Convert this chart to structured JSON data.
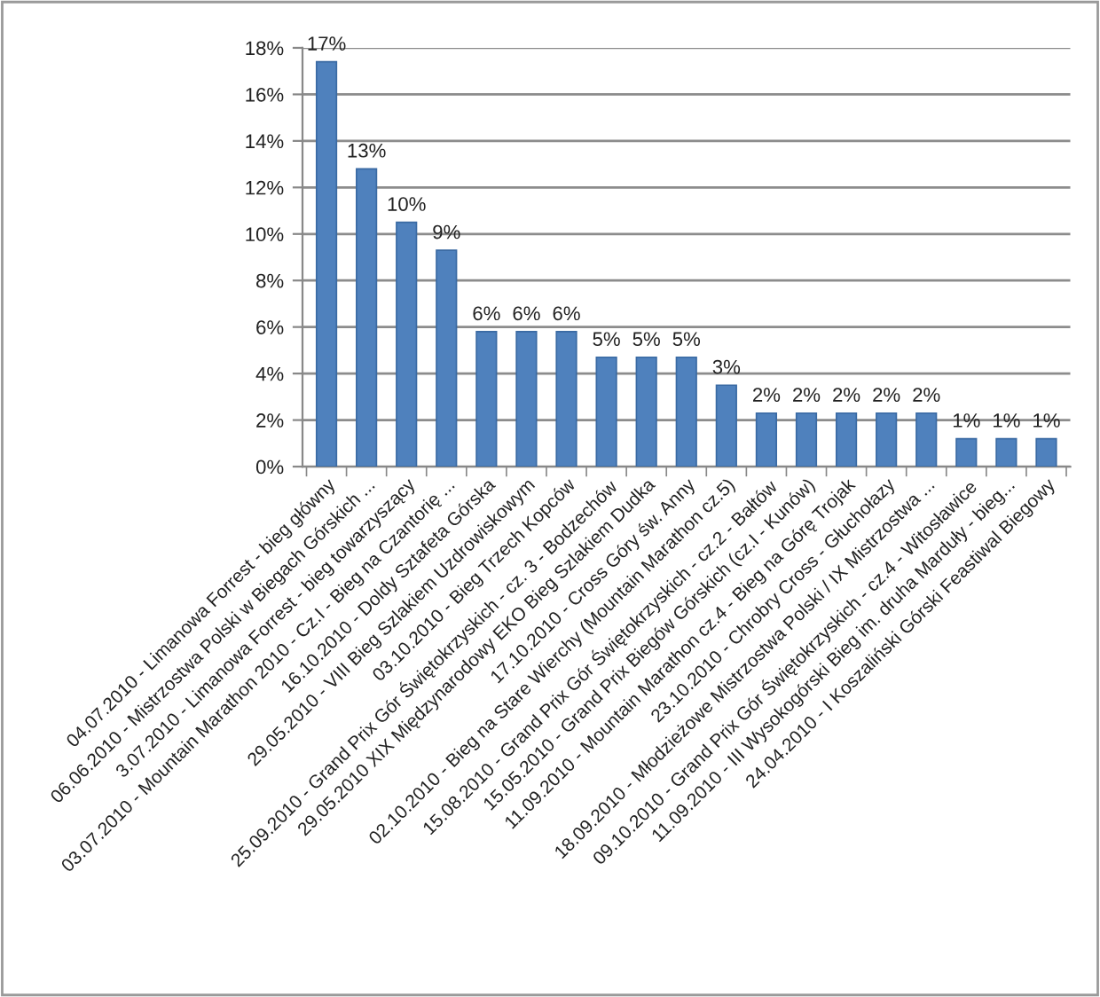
{
  "chart_data": {
    "type": "bar",
    "categories": [
      "04.07.2010 - Limanowa Forrest - bieg główny",
      "06.06.2010 - Mistrzostwa Polski w Biegach Górskich ...",
      "3.07.2010 - Limanowa Forrest - bieg towarzyszący",
      "03.07.2010 - Mountain Marathon 2010 - Cz.I - Bieg na Czantorię ...",
      "16.10.2010 - Doldy Sztafeta Górska",
      "29.05.2010 - VIII Bieg Szlakiem Uzdrowiskowym",
      "03.10.2010 - Bieg Trzech Kopców",
      "25.09.2010 - Grand Prix Gór Świętokrzyskich - cz. 3 - Bodzechów",
      "29.05.2010 XIX Międzynarodowy EKO Bieg Szlakiem Dudka",
      "17.10.2010 - Cross Góry św. Anny",
      "02.10.2010 - Bieg na Stare Wierchy (Mountain Marathon cz.5)",
      "15.08.2010 - Grand Prix Gór Świętokrzyskich - cz.2 - Bałtów",
      "15.05.2010 - Grand Prix Biegów Górskich (cz.I - Kunów)",
      "11.09.2010 - Mountain Marathon cz.4 - Bieg na Górę Trojak",
      "23.10.2010 - Chrobry Cross - Głuchołazy",
      "18.09.2010 - Młodzieżowe Mistrzostwa Polski / IX Mistrzostwa ...",
      "09.10.2010 - Grand Prix Gór Świętokrzyskich - cz.4 - Witosławice",
      "11.09.2010 - III Wysokogórski Bieg im. druha Marduły - bieg...",
      "24.04.2010 - I Koszaliński Górski Feastiwal Biegowy"
    ],
    "values": [
      17.4,
      12.8,
      10.5,
      9.3,
      5.8,
      5.8,
      5.8,
      4.7,
      4.7,
      4.7,
      3.5,
      2.3,
      2.3,
      2.3,
      2.3,
      2.3,
      1.2,
      1.2,
      1.2
    ],
    "value_labels": [
      "17%",
      "13%",
      "10%",
      "9%",
      "6%",
      "6%",
      "6%",
      "5%",
      "5%",
      "5%",
      "3%",
      "2%",
      "2%",
      "2%",
      "2%",
      "2%",
      "1%",
      "1%",
      "1%"
    ],
    "color": "#4f81bd",
    "ylim": [
      0,
      18
    ],
    "yticks": [
      {
        "value": 0,
        "label": "0%"
      },
      {
        "value": 2,
        "label": "2%"
      },
      {
        "value": 4,
        "label": "4%"
      },
      {
        "value": 6,
        "label": "6%"
      },
      {
        "value": 8,
        "label": "8%"
      },
      {
        "value": 10,
        "label": "10%"
      },
      {
        "value": 12,
        "label": "12%"
      },
      {
        "value": 14,
        "label": "14%"
      },
      {
        "value": 16,
        "label": "16%"
      },
      {
        "value": 18,
        "label": "18%"
      }
    ],
    "grid": "y"
  }
}
